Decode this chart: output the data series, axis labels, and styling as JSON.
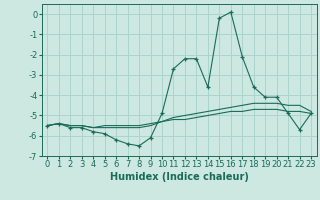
{
  "title": "",
  "xlabel": "Humidex (Indice chaleur)",
  "ylabel": "",
  "bg_color": "#cce8e0",
  "grid_color": "#aad4cc",
  "line_color": "#1a6b5a",
  "series1_y": [
    -5.5,
    -5.4,
    -5.6,
    -5.6,
    -5.8,
    -5.9,
    -6.2,
    -6.4,
    -6.5,
    -6.1,
    -4.9,
    -2.7,
    -2.2,
    -2.2,
    -3.6,
    -0.2,
    0.1,
    -2.1,
    -3.6,
    -4.1,
    -4.1,
    -4.9,
    -5.7,
    -4.9
  ],
  "series2_y": [
    -5.5,
    -5.4,
    -5.5,
    -5.5,
    -5.6,
    -5.6,
    -5.6,
    -5.6,
    -5.6,
    -5.5,
    -5.3,
    -5.1,
    -5.0,
    -4.9,
    -4.8,
    -4.7,
    -4.6,
    -4.5,
    -4.4,
    -4.4,
    -4.4,
    -4.5,
    -4.5,
    -4.8
  ],
  "series3_y": [
    -5.5,
    -5.4,
    -5.5,
    -5.5,
    -5.6,
    -5.5,
    -5.5,
    -5.5,
    -5.5,
    -5.4,
    -5.3,
    -5.2,
    -5.2,
    -5.1,
    -5.0,
    -4.9,
    -4.8,
    -4.8,
    -4.7,
    -4.7,
    -4.7,
    -4.8,
    -4.8,
    -4.9
  ],
  "x": [
    0,
    1,
    2,
    3,
    4,
    5,
    6,
    7,
    8,
    9,
    10,
    11,
    12,
    13,
    14,
    15,
    16,
    17,
    18,
    19,
    20,
    21,
    22,
    23
  ],
  "xlim": [
    -0.5,
    23.5
  ],
  "ylim": [
    -7,
    0.5
  ],
  "yticks": [
    0,
    -1,
    -2,
    -3,
    -4,
    -5,
    -6,
    -7
  ],
  "xticks": [
    0,
    1,
    2,
    3,
    4,
    5,
    6,
    7,
    8,
    9,
    10,
    11,
    12,
    13,
    14,
    15,
    16,
    17,
    18,
    19,
    20,
    21,
    22,
    23
  ],
  "tick_fontsize": 6,
  "xlabel_fontsize": 7
}
